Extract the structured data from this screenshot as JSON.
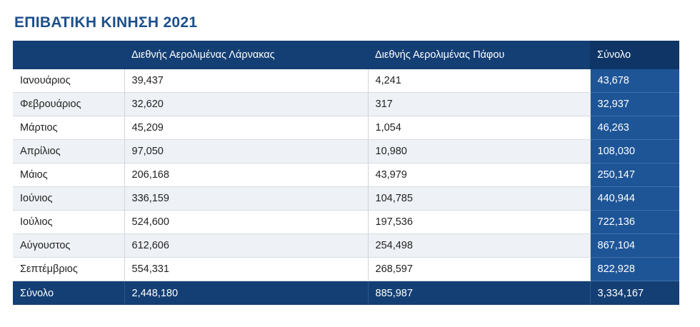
{
  "title": "ΕΠΙΒΑΤΙΚΗ ΚΙΝΗΣΗ 2021",
  "columns": [
    "",
    "Διεθνής Αερολιμένας Λάρνακας",
    "Διεθνής Αερολιμένας Πάφου",
    "Σύνολο"
  ],
  "rows": [
    [
      "Ιανουάριος",
      "39,437",
      "4,241",
      "43,678"
    ],
    [
      "Φεβρουάριος",
      "32,620",
      "317",
      "32,937"
    ],
    [
      "Μάρτιος",
      "45,209",
      "1,054",
      "46,263"
    ],
    [
      "Απρίλιος",
      "97,050",
      "10,980",
      "108,030"
    ],
    [
      "Μάιος",
      "206,168",
      "43,979",
      "250,147"
    ],
    [
      "Ιούνιος",
      "336,159",
      "104,785",
      "440,944"
    ],
    [
      "Ιούλιος",
      "524,600",
      "197,536",
      "722,136"
    ],
    [
      "Αύγουστος",
      "612,606",
      "254,498",
      "867,104"
    ],
    [
      "Σεπτέμβριος",
      "554,331",
      "268,597",
      "822,928"
    ]
  ],
  "footer": [
    "Σύνολο",
    "2,448,180",
    "885,987",
    "3,334,167"
  ]
}
